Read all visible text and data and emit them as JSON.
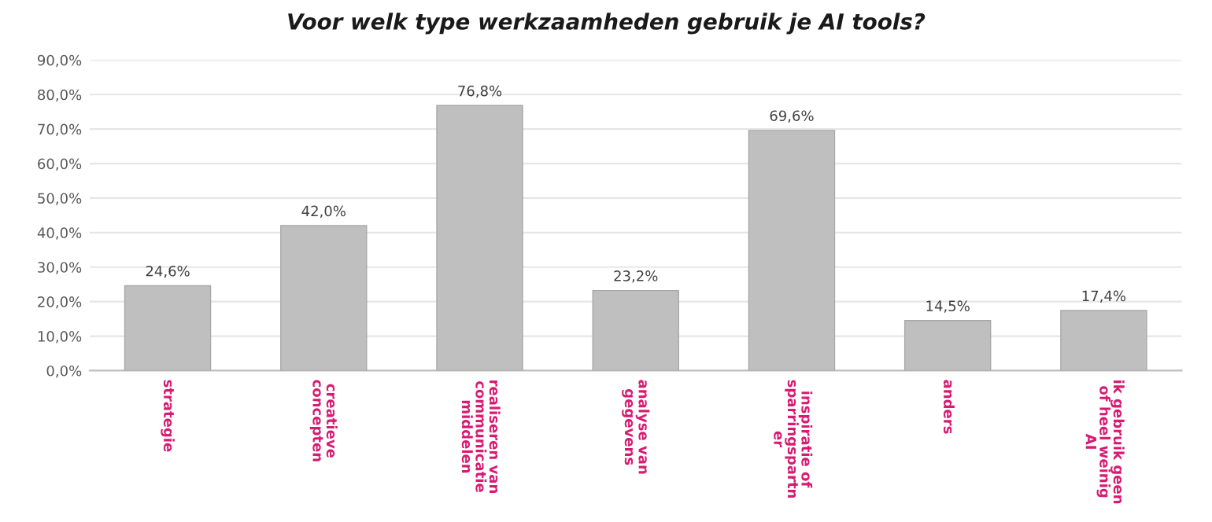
{
  "chart_data": {
    "type": "bar",
    "title": "Voor welk type werkzaamheden gebruik je AI tools?",
    "categories": [
      "strategie",
      "creatieve\nconcepten",
      "realiseren van\ncommunicatie\nmiddelen",
      "analyse van\ngegevens",
      "inspiratie of\nsparringspartn\ner",
      "anders",
      "ik gebruik geen\nof heel weinig\nAI"
    ],
    "values": [
      24.6,
      42.0,
      76.8,
      23.2,
      69.6,
      14.5,
      17.4
    ],
    "value_labels": [
      "24,6%",
      "42,0%",
      "76,8%",
      "23,2%",
      "69,6%",
      "14,5%",
      "17,4%"
    ],
    "color": "#bfbfbf",
    "ylim": [
      0,
      90
    ],
    "yticks": [
      {
        "value": 0,
        "label": "0,0%"
      },
      {
        "value": 10,
        "label": "10,0%"
      },
      {
        "value": 20,
        "label": "20,0%"
      },
      {
        "value": 30,
        "label": "30,0%"
      },
      {
        "value": 40,
        "label": "40,0%"
      },
      {
        "value": 50,
        "label": "50,0%"
      },
      {
        "value": 60,
        "label": "60,0%"
      },
      {
        "value": 70,
        "label": "70,0%"
      },
      {
        "value": 80,
        "label": "80,0%"
      },
      {
        "value": 90,
        "label": "90,0%"
      }
    ],
    "grid": "y"
  }
}
